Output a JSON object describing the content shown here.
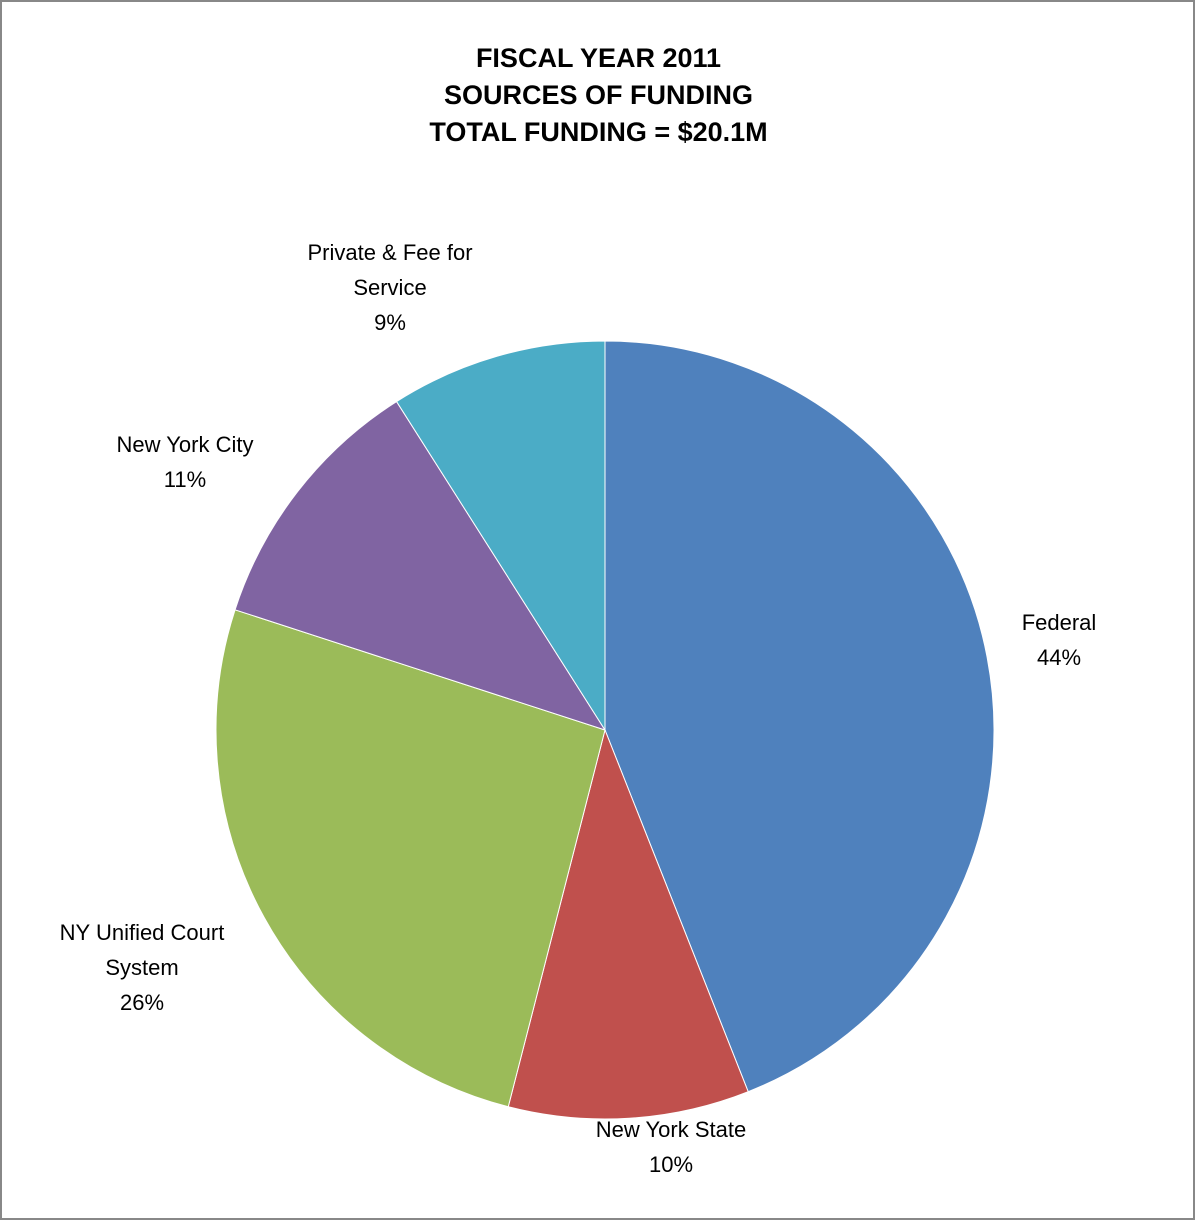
{
  "chart_data": {
    "type": "pie",
    "title_lines": [
      "FISCAL YEAR 2011",
      "SOURCES OF FUNDING",
      "TOTAL FUNDING = $20.1M"
    ],
    "slices": [
      {
        "label_lines": [
          "Federal"
        ],
        "percent_label": "44%",
        "value": 44,
        "color": "#4F81BD"
      },
      {
        "label_lines": [
          "New York State"
        ],
        "percent_label": "10%",
        "value": 10,
        "color": "#C0504D"
      },
      {
        "label_lines": [
          "NY Unified Court",
          "System"
        ],
        "percent_label": "26%",
        "value": 26,
        "color": "#9BBB59"
      },
      {
        "label_lines": [
          "New York City"
        ],
        "percent_label": "11%",
        "value": 11,
        "color": "#8064A2"
      },
      {
        "label_lines": [
          "Private & Fee for",
          "Service"
        ],
        "percent_label": "9%",
        "value": 9,
        "color": "#4BACC6"
      }
    ],
    "start_angle": "12 o'clock",
    "direction": "clockwise",
    "legend": "none"
  }
}
